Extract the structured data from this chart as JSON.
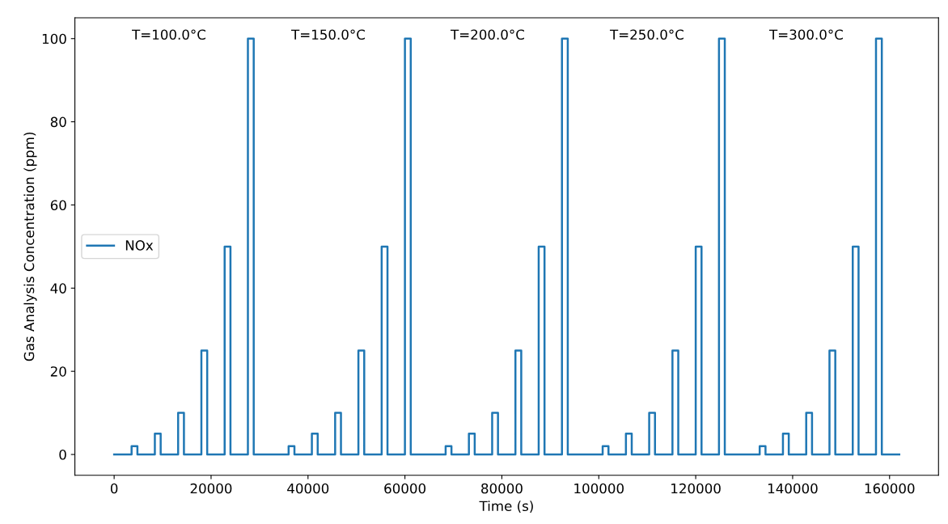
{
  "chart_data": {
    "type": "step",
    "xlabel": "Time (s)",
    "ylabel": "Gas Analysis Concentration (ppm)",
    "x": [
      0,
      3600,
      4800,
      8400,
      9600,
      13200,
      14400,
      18000,
      19200,
      22800,
      24000,
      27600,
      28800,
      32400,
      36000,
      37200,
      40800,
      42000,
      45600,
      46800,
      50400,
      51600,
      55200,
      56400,
      60000,
      61200,
      64800,
      68400,
      69600,
      73200,
      74400,
      78000,
      79200,
      82800,
      84000,
      87600,
      88800,
      92400,
      93600,
      97200,
      100800,
      102000,
      105600,
      106800,
      110400,
      111600,
      115200,
      116400,
      120000,
      121200,
      124800,
      126000,
      129600,
      133200,
      134400,
      138000,
      139200,
      142800,
      144000,
      147600,
      148800,
      152400,
      153600,
      157200,
      158400,
      162000
    ],
    "series": [
      {
        "name": "NOx",
        "color": "#1f77b4",
        "values": [
          0,
          2,
          0,
          5,
          0,
          10,
          0,
          25,
          0,
          50,
          0,
          100,
          0,
          0,
          2,
          0,
          5,
          0,
          10,
          0,
          25,
          0,
          50,
          0,
          100,
          0,
          0,
          2,
          0,
          5,
          0,
          10,
          0,
          25,
          0,
          50,
          0,
          100,
          0,
          0,
          2,
          0,
          5,
          0,
          10,
          0,
          25,
          0,
          50,
          0,
          100,
          0,
          0,
          2,
          0,
          5,
          0,
          10,
          0,
          25,
          0,
          50,
          0,
          100,
          0,
          0
        ]
      }
    ],
    "annotations": [
      "T=100.0°C",
      "T=150.0°C",
      "T=200.0°C",
      "T=250.0°C",
      "T=300.0°C"
    ],
    "xlim": [
      -8100,
      170100
    ],
    "ylim": [
      -5,
      105
    ],
    "xticks": [
      0,
      20000,
      40000,
      60000,
      80000,
      100000,
      120000,
      140000,
      160000
    ],
    "yticks": [
      0,
      20,
      40,
      60,
      80,
      100
    ],
    "legend": "left",
    "grid": false,
    "marker": "none",
    "line_style": "solid"
  }
}
